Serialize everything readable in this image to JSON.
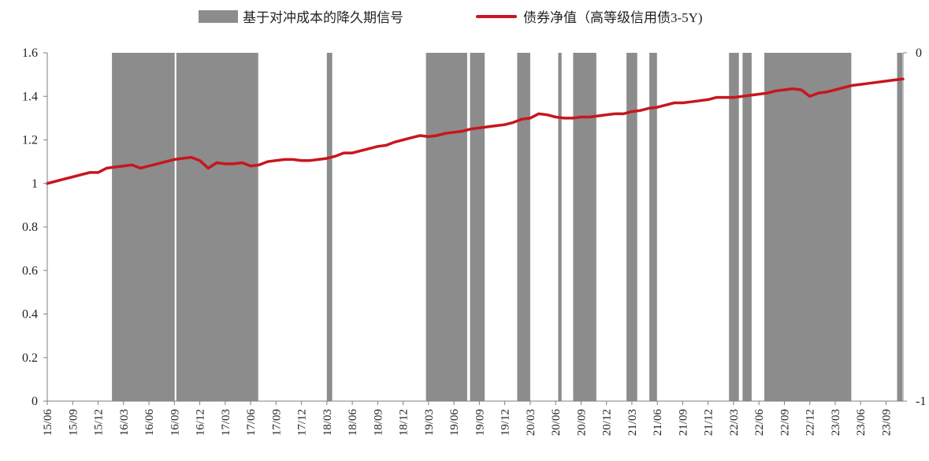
{
  "chart_data": {
    "type": "bar+line",
    "legend": {
      "position": "top",
      "entries": [
        {
          "label": "基于对冲成本的降久期信号",
          "kind": "bar",
          "color": "#8c8c8c"
        },
        {
          "label": "债券净值（高等级信用债3-5Y)",
          "kind": "line",
          "color": "#c8161d"
        }
      ]
    },
    "x_ticks": [
      "15/06",
      "15/09",
      "15/12",
      "16/03",
      "16/06",
      "16/09",
      "16/12",
      "17/03",
      "17/06",
      "17/09",
      "17/12",
      "18/03",
      "18/06",
      "18/09",
      "18/12",
      "19/03",
      "19/06",
      "19/09",
      "19/12",
      "20/03",
      "20/06",
      "20/09",
      "20/12",
      "21/03",
      "21/06",
      "21/09",
      "21/12",
      "22/03",
      "22/06",
      "22/09",
      "22/12",
      "23/03",
      "23/06",
      "23/09"
    ],
    "x_range": [
      "2015-06",
      "2023-11"
    ],
    "y_left": {
      "ticks": [
        "0",
        "0.2",
        "0.4",
        "0.6",
        "0.8",
        "1",
        "1.2",
        "1.4",
        "1.6"
      ],
      "range": [
        0,
        1.6
      ]
    },
    "y_right": {
      "ticks": [
        "0",
        "-1"
      ],
      "range": [
        -1,
        0
      ]
    },
    "signal_series": {
      "name": "基于对冲成本的降久期信号",
      "value": -1,
      "periods": [
        [
          "2016-01-20",
          "2016-09-02"
        ],
        [
          "2016-09-08",
          "2017-06-28"
        ],
        [
          "2018-03-01",
          "2018-03-20"
        ],
        [
          "2019-02-22",
          "2019-07-18"
        ],
        [
          "2019-07-28",
          "2019-09-20"
        ],
        [
          "2020-01-15",
          "2020-03-01"
        ],
        [
          "2020-06-10",
          "2020-06-22"
        ],
        [
          "2020-08-03",
          "2020-10-25"
        ],
        [
          "2021-02-12",
          "2021-03-20"
        ],
        [
          "2021-05-03",
          "2021-05-30"
        ],
        [
          "2022-02-15",
          "2022-03-20"
        ],
        [
          "2022-04-03",
          "2022-05-05"
        ],
        [
          "2022-06-20",
          "2023-04-28"
        ],
        [
          "2023-10-10",
          "2023-10-28"
        ]
      ]
    },
    "nav_series": {
      "name": "债券净值（高等级信用债3-5Y)",
      "points": [
        [
          "2015-06",
          1.0
        ],
        [
          "2015-07",
          1.01
        ],
        [
          "2015-08",
          1.02
        ],
        [
          "2015-09",
          1.03
        ],
        [
          "2015-10",
          1.04
        ],
        [
          "2015-11",
          1.05
        ],
        [
          "2015-12",
          1.05
        ],
        [
          "2016-01",
          1.07
        ],
        [
          "2016-02",
          1.075
        ],
        [
          "2016-03",
          1.08
        ],
        [
          "2016-04",
          1.085
        ],
        [
          "2016-05",
          1.07
        ],
        [
          "2016-06",
          1.08
        ],
        [
          "2016-07",
          1.09
        ],
        [
          "2016-08",
          1.1
        ],
        [
          "2016-09",
          1.11
        ],
        [
          "2016-10",
          1.115
        ],
        [
          "2016-11",
          1.12
        ],
        [
          "2016-12",
          1.105
        ],
        [
          "2017-01",
          1.07
        ],
        [
          "2017-02",
          1.095
        ],
        [
          "2017-03",
          1.09
        ],
        [
          "2017-04",
          1.09
        ],
        [
          "2017-05",
          1.095
        ],
        [
          "2017-06",
          1.08
        ],
        [
          "2017-07",
          1.085
        ],
        [
          "2017-08",
          1.1
        ],
        [
          "2017-09",
          1.105
        ],
        [
          "2017-10",
          1.11
        ],
        [
          "2017-11",
          1.11
        ],
        [
          "2017-12",
          1.105
        ],
        [
          "2018-01",
          1.105
        ],
        [
          "2018-02",
          1.11
        ],
        [
          "2018-03",
          1.115
        ],
        [
          "2018-04",
          1.125
        ],
        [
          "2018-05",
          1.14
        ],
        [
          "2018-06",
          1.14
        ],
        [
          "2018-07",
          1.15
        ],
        [
          "2018-08",
          1.16
        ],
        [
          "2018-09",
          1.17
        ],
        [
          "2018-10",
          1.175
        ],
        [
          "2018-11",
          1.19
        ],
        [
          "2018-12",
          1.2
        ],
        [
          "2019-01",
          1.21
        ],
        [
          "2019-02",
          1.22
        ],
        [
          "2019-03",
          1.215
        ],
        [
          "2019-04",
          1.22
        ],
        [
          "2019-05",
          1.23
        ],
        [
          "2019-06",
          1.235
        ],
        [
          "2019-07",
          1.24
        ],
        [
          "2019-08",
          1.25
        ],
        [
          "2019-09",
          1.255
        ],
        [
          "2019-10",
          1.26
        ],
        [
          "2019-11",
          1.265
        ],
        [
          "2019-12",
          1.27
        ],
        [
          "2020-01",
          1.28
        ],
        [
          "2020-02",
          1.295
        ],
        [
          "2020-03",
          1.3
        ],
        [
          "2020-04",
          1.32
        ],
        [
          "2020-05",
          1.315
        ],
        [
          "2020-06",
          1.305
        ],
        [
          "2020-07",
          1.3
        ],
        [
          "2020-08",
          1.3
        ],
        [
          "2020-09",
          1.305
        ],
        [
          "2020-10",
          1.305
        ],
        [
          "2020-11",
          1.31
        ],
        [
          "2020-12",
          1.315
        ],
        [
          "2021-01",
          1.32
        ],
        [
          "2021-02",
          1.32
        ],
        [
          "2021-03",
          1.33
        ],
        [
          "2021-04",
          1.335
        ],
        [
          "2021-05",
          1.345
        ],
        [
          "2021-06",
          1.35
        ],
        [
          "2021-07",
          1.36
        ],
        [
          "2021-08",
          1.37
        ],
        [
          "2021-09",
          1.37
        ],
        [
          "2021-10",
          1.375
        ],
        [
          "2021-11",
          1.38
        ],
        [
          "2021-12",
          1.385
        ],
        [
          "2022-01",
          1.395
        ],
        [
          "2022-02",
          1.395
        ],
        [
          "2022-03",
          1.395
        ],
        [
          "2022-04",
          1.4
        ],
        [
          "2022-05",
          1.405
        ],
        [
          "2022-06",
          1.41
        ],
        [
          "2022-07",
          1.415
        ],
        [
          "2022-08",
          1.425
        ],
        [
          "2022-09",
          1.43
        ],
        [
          "2022-10",
          1.435
        ],
        [
          "2022-11",
          1.43
        ],
        [
          "2022-12",
          1.4
        ],
        [
          "2023-01",
          1.415
        ],
        [
          "2023-02",
          1.42
        ],
        [
          "2023-03",
          1.43
        ],
        [
          "2023-04",
          1.44
        ],
        [
          "2023-05",
          1.45
        ],
        [
          "2023-06",
          1.455
        ],
        [
          "2023-07",
          1.46
        ],
        [
          "2023-08",
          1.465
        ],
        [
          "2023-09",
          1.47
        ],
        [
          "2023-10",
          1.475
        ],
        [
          "2023-11",
          1.48
        ]
      ]
    }
  }
}
